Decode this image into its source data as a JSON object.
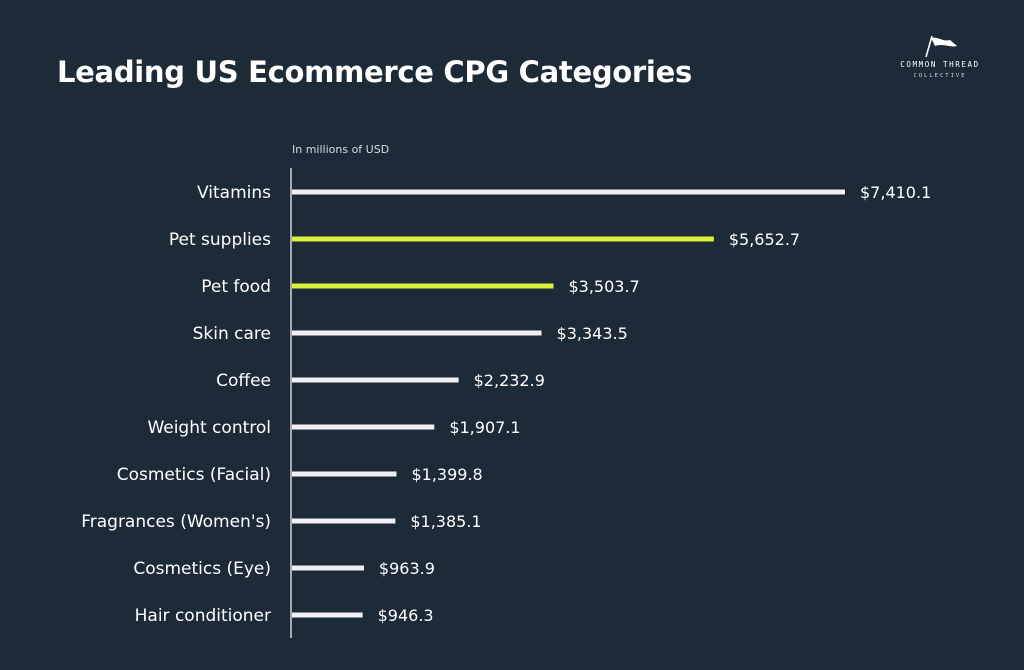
{
  "title": "Leading US Ecommerce CPG Categories",
  "logo": {
    "brand": "COMMON THREAD",
    "sub": "COLLECTIVE",
    "icon": "flag-icon"
  },
  "colors": {
    "background": "#1d2b39",
    "bar_default": "#f1eef4",
    "bar_highlight": "#d8f23a",
    "text": "#ffffff"
  },
  "chart_data": {
    "type": "bar",
    "orientation": "horizontal",
    "unit_label": "In millions of USD",
    "categories": [
      "Vitamins",
      "Pet supplies",
      "Pet food",
      "Skin care",
      "Coffee",
      "Weight control",
      "Cosmetics (Facial)",
      "Fragrances (Women's)",
      "Cosmetics (Eye)",
      "Hair conditioner"
    ],
    "values": [
      7410.1,
      5652.7,
      3503.7,
      3343.5,
      2232.9,
      1907.1,
      1399.8,
      1385.1,
      963.9,
      946.3
    ],
    "value_labels": [
      "$7,410.1",
      "$5,652.7",
      "$3,503.7",
      "$3,343.5",
      "$2,232.9",
      "$1,907.1",
      "$1,399.8",
      "$1,385.1",
      "$963.9",
      "$946.3"
    ],
    "highlighted": [
      "Pet supplies",
      "Pet food"
    ],
    "grid": false,
    "legend": "none"
  }
}
